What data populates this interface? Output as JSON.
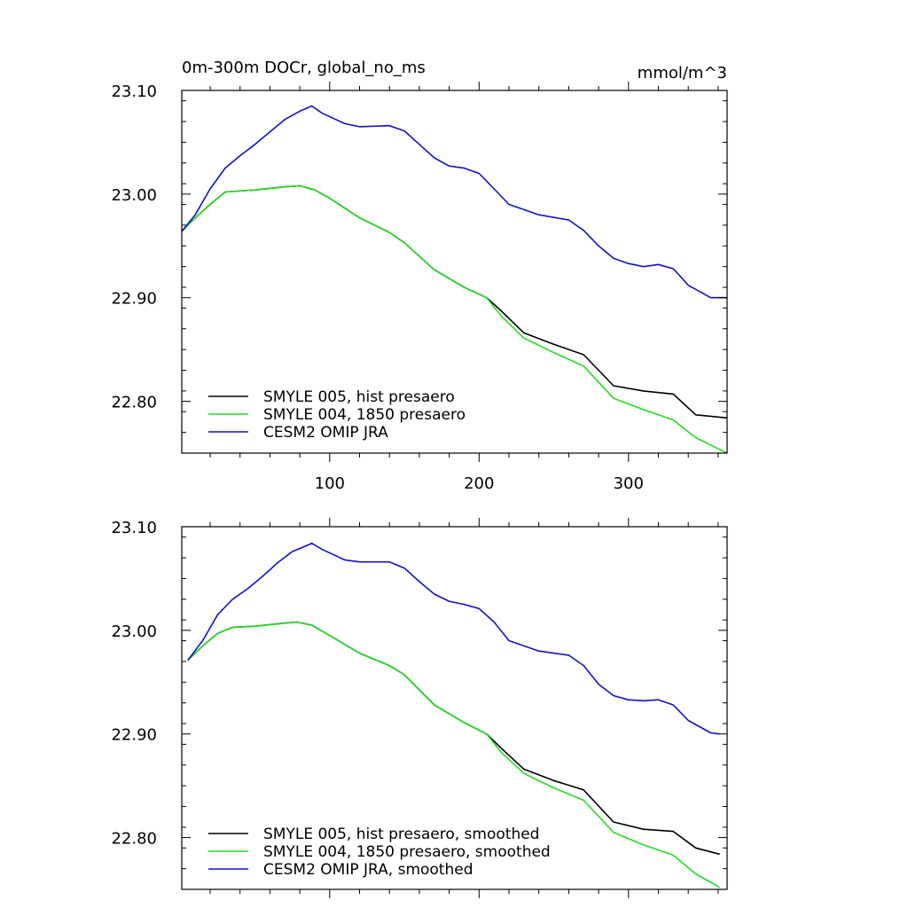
{
  "chart_data": [
    {
      "type": "line",
      "title": "0m-300m DOCr, global_no_ms",
      "units": "mmol/m^3",
      "xlim": [
        1,
        366
      ],
      "ylim": [
        22.75,
        23.1
      ],
      "x_ticks": [
        100,
        200,
        300
      ],
      "x_tick_labels": [
        "100",
        "200",
        "300"
      ],
      "y_ticks": [
        22.8,
        22.9,
        23.0,
        23.1
      ],
      "y_tick_labels": [
        "22.80",
        "22.90",
        "23.00",
        "23.10"
      ],
      "legend_position": "bottom-left",
      "series": [
        {
          "name": "SMYLE 005, hist presaero",
          "color": "#000000",
          "x": [
            1,
            10,
            20,
            30,
            50,
            70,
            80,
            90,
            100,
            120,
            140,
            150,
            170,
            190,
            205,
            215,
            230,
            250,
            270,
            290,
            310,
            330,
            345,
            366
          ],
          "values": [
            22.964,
            22.977,
            22.99,
            23.002,
            23.004,
            23.007,
            23.008,
            23.004,
            22.996,
            22.977,
            22.963,
            22.953,
            22.927,
            22.91,
            22.9,
            22.887,
            22.866,
            22.855,
            22.845,
            22.815,
            22.81,
            22.807,
            22.787,
            22.784
          ]
        },
        {
          "name": "SMYLE 004, 1850 presaero",
          "color": "#22dd22",
          "x": [
            1,
            10,
            20,
            30,
            50,
            70,
            80,
            90,
            100,
            120,
            140,
            150,
            170,
            190,
            205,
            215,
            230,
            250,
            270,
            290,
            310,
            330,
            345,
            366
          ],
          "values": [
            22.964,
            22.977,
            22.99,
            23.002,
            23.004,
            23.007,
            23.008,
            23.004,
            22.996,
            22.977,
            22.963,
            22.953,
            22.927,
            22.91,
            22.9,
            22.882,
            22.861,
            22.847,
            22.834,
            22.803,
            22.792,
            22.782,
            22.765,
            22.75
          ]
        },
        {
          "name": "CESM2 OMIP JRA",
          "color": "#1111cc",
          "x": [
            1,
            10,
            20,
            30,
            40,
            50,
            60,
            70,
            80,
            88,
            95,
            110,
            120,
            140,
            150,
            160,
            170,
            180,
            190,
            200,
            210,
            220,
            240,
            260,
            270,
            280,
            290,
            300,
            310,
            320,
            330,
            340,
            355,
            366
          ],
          "values": [
            22.964,
            22.98,
            23.005,
            23.025,
            23.037,
            23.048,
            23.06,
            23.072,
            23.08,
            23.085,
            23.078,
            23.068,
            23.065,
            23.066,
            23.061,
            23.048,
            23.035,
            23.027,
            23.025,
            23.02,
            23.005,
            22.99,
            22.98,
            22.975,
            22.965,
            22.95,
            22.938,
            22.933,
            22.93,
            22.932,
            22.928,
            22.912,
            22.9,
            22.9
          ]
        }
      ]
    },
    {
      "type": "line",
      "title": "",
      "xlim": [
        1,
        366
      ],
      "ylim": [
        22.75,
        23.1
      ],
      "x_ticks": [
        100,
        200,
        300
      ],
      "y_ticks": [
        22.8,
        22.9,
        23.0,
        23.1
      ],
      "y_tick_labels": [
        "22.80",
        "22.90",
        "23.00",
        "23.10"
      ],
      "legend_position": "bottom-left",
      "series": [
        {
          "name": "SMYLE 005, hist presaero, smoothed",
          "color": "#000000",
          "x": [
            5,
            15,
            25,
            35,
            50,
            70,
            78,
            88,
            100,
            120,
            140,
            150,
            170,
            190,
            205,
            215,
            230,
            250,
            270,
            290,
            310,
            330,
            345,
            361
          ],
          "values": [
            22.971,
            22.985,
            22.997,
            23.003,
            23.004,
            23.007,
            23.008,
            23.005,
            22.995,
            22.978,
            22.966,
            22.957,
            22.928,
            22.911,
            22.9,
            22.886,
            22.866,
            22.855,
            22.846,
            22.815,
            22.808,
            22.806,
            22.79,
            22.784
          ]
        },
        {
          "name": "SMYLE 004, 1850 presaero, smoothed",
          "color": "#22dd22",
          "x": [
            5,
            15,
            25,
            35,
            50,
            70,
            78,
            88,
            100,
            120,
            140,
            150,
            170,
            190,
            205,
            215,
            230,
            250,
            270,
            290,
            310,
            330,
            345,
            361
          ],
          "values": [
            22.971,
            22.985,
            22.997,
            23.003,
            23.004,
            23.007,
            23.008,
            23.005,
            22.995,
            22.978,
            22.966,
            22.957,
            22.928,
            22.911,
            22.9,
            22.882,
            22.862,
            22.848,
            22.836,
            22.805,
            22.793,
            22.783,
            22.765,
            22.752
          ]
        },
        {
          "name": "CESM2 OMIP JRA, smoothed",
          "color": "#1111cc",
          "x": [
            5,
            15,
            25,
            35,
            45,
            55,
            65,
            75,
            85,
            88,
            95,
            110,
            120,
            140,
            150,
            160,
            170,
            180,
            190,
            200,
            210,
            220,
            240,
            260,
            270,
            280,
            290,
            300,
            310,
            320,
            330,
            340,
            355,
            361
          ],
          "values": [
            22.971,
            22.99,
            23.015,
            23.03,
            23.04,
            23.052,
            23.065,
            23.076,
            23.082,
            23.084,
            23.078,
            23.068,
            23.066,
            23.066,
            23.06,
            23.047,
            23.035,
            23.028,
            23.025,
            23.021,
            23.008,
            22.99,
            22.98,
            22.976,
            22.966,
            22.948,
            22.937,
            22.933,
            22.932,
            22.933,
            22.928,
            22.913,
            22.901,
            22.9
          ]
        }
      ]
    }
  ]
}
